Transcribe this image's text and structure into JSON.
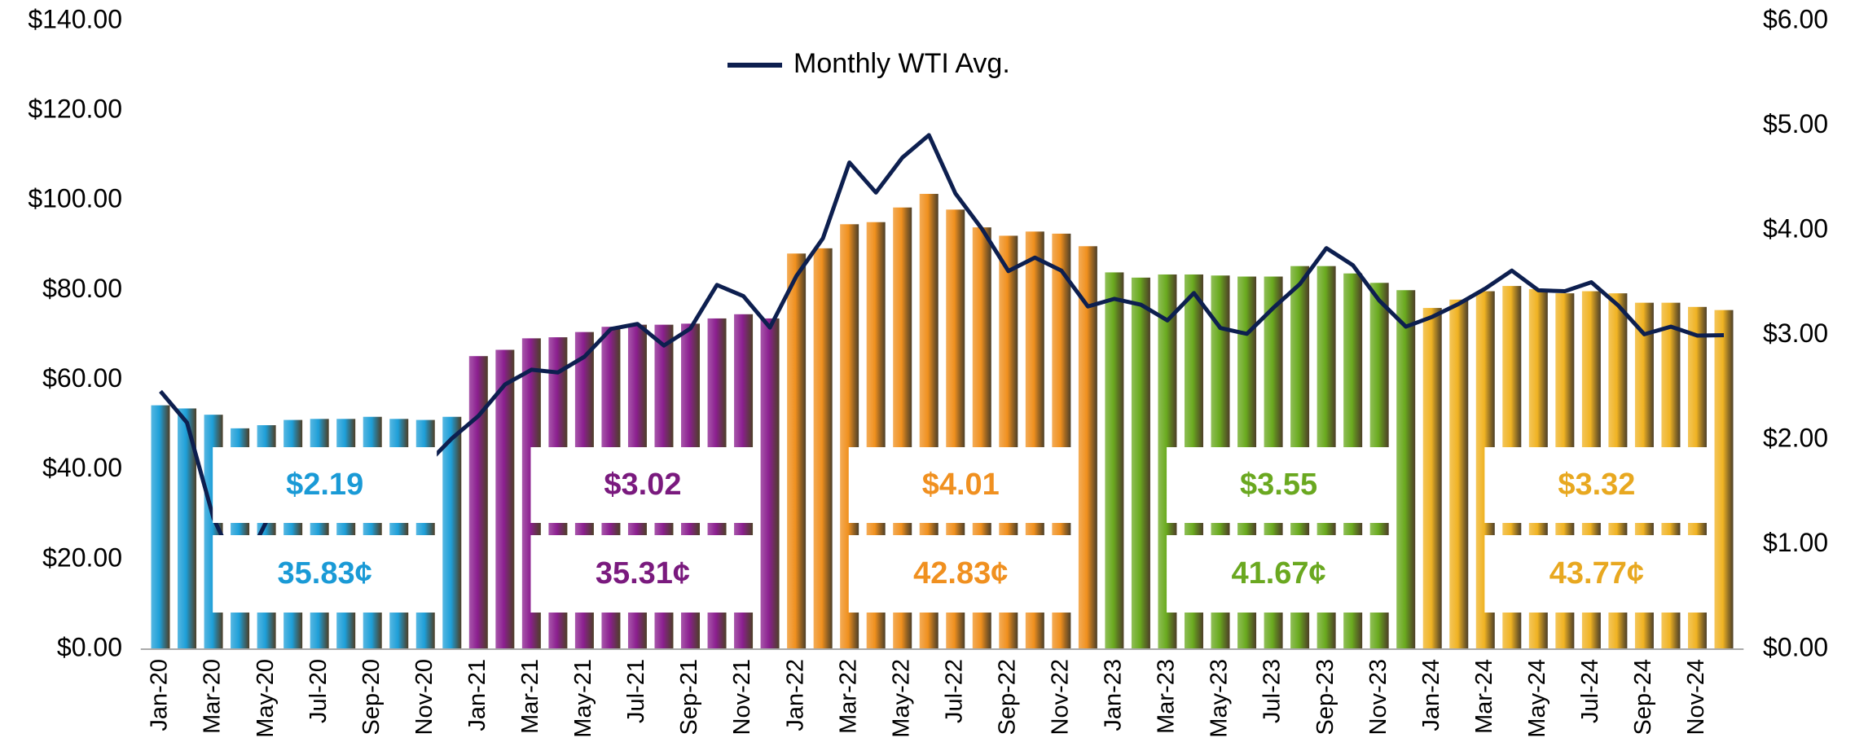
{
  "chart_data": {
    "type": "bar",
    "categories": [
      "Jan-20",
      null,
      "Mar-20",
      null,
      "May-20",
      null,
      "Jul-20",
      null,
      "Sep-20",
      null,
      "Nov-20",
      null,
      "Jan-21",
      null,
      "Mar-21",
      null,
      "May-21",
      null,
      "Jul-21",
      null,
      "Sep-21",
      null,
      "Nov-21",
      null,
      "Jan-22",
      null,
      "Mar-22",
      null,
      "May-22",
      null,
      "Jul-22",
      null,
      "Sep-22",
      null,
      "Nov-22",
      null,
      "Jan-23",
      null,
      "Mar-23",
      null,
      "May-23",
      null,
      "Jul-23",
      null,
      "Sep-23",
      null,
      "Nov-23",
      null,
      "Jan-24",
      null,
      "Mar-24",
      null,
      "May-24",
      null,
      "Jul-24",
      null,
      "Sep-24",
      null,
      "Nov-24",
      null
    ],
    "bars": {
      "axis": "y2",
      "values": [
        2.33,
        2.3,
        2.24,
        2.11,
        2.14,
        2.19,
        2.2,
        2.2,
        2.22,
        2.2,
        2.19,
        2.22,
        2.8,
        2.86,
        2.97,
        2.98,
        3.03,
        3.08,
        3.1,
        3.1,
        3.11,
        3.16,
        3.2,
        3.16,
        3.78,
        3.83,
        4.06,
        4.08,
        4.22,
        4.35,
        4.2,
        4.03,
        3.95,
        3.99,
        3.97,
        3.85,
        3.6,
        3.55,
        3.58,
        3.58,
        3.57,
        3.56,
        3.56,
        3.66,
        3.66,
        3.59,
        3.5,
        3.43,
        3.26,
        3.34,
        3.42,
        3.47,
        3.44,
        3.4,
        3.42,
        3.4,
        3.31,
        3.31,
        3.27,
        3.24
      ],
      "colors": [
        "#1e9fd8",
        "#1e9fd8",
        "#1e9fd8",
        "#1e9fd8",
        "#1e9fd8",
        "#1e9fd8",
        "#1e9fd8",
        "#1e9fd8",
        "#1e9fd8",
        "#1e9fd8",
        "#1e9fd8",
        "#1e9fd8",
        "#8b1f8f",
        "#8b1f8f",
        "#8b1f8f",
        "#8b1f8f",
        "#8b1f8f",
        "#8b1f8f",
        "#8b1f8f",
        "#8b1f8f",
        "#8b1f8f",
        "#8b1f8f",
        "#8b1f8f",
        "#8b1f8f",
        "#f0901e",
        "#f0901e",
        "#f0901e",
        "#f0901e",
        "#f0901e",
        "#f0901e",
        "#f0901e",
        "#f0901e",
        "#f0901e",
        "#f0901e",
        "#f0901e",
        "#f0901e",
        "#6aaa1f",
        "#6aaa1f",
        "#6aaa1f",
        "#6aaa1f",
        "#6aaa1f",
        "#6aaa1f",
        "#6aaa1f",
        "#6aaa1f",
        "#6aaa1f",
        "#6aaa1f",
        "#6aaa1f",
        "#6aaa1f",
        "#f0b323",
        "#f0b323",
        "#f0b323",
        "#f0b323",
        "#f0b323",
        "#f0b323",
        "#f0b323",
        "#f0b323",
        "#f0b323",
        "#f0b323",
        "#f0b323",
        "#f0b323"
      ]
    },
    "series": [
      {
        "name": "Monthly WTI Avg.",
        "color": "#0d1f4f",
        "values": [
          57.5,
          50.5,
          29.2,
          16.6,
          28.5,
          38.3,
          40.7,
          42.3,
          39.6,
          39.4,
          41.0,
          47.0,
          52.0,
          59.0,
          62.3,
          61.7,
          65.2,
          71.4,
          72.5,
          67.7,
          71.5,
          81.2,
          78.7,
          71.7,
          83.2,
          91.6,
          108.5,
          101.8,
          109.6,
          114.6,
          101.6,
          93.7,
          84.3,
          87.3,
          84.4,
          76.4,
          78.1,
          76.8,
          73.3,
          79.4,
          71.6,
          70.3,
          76.1,
          81.4,
          89.4,
          85.6,
          77.7,
          71.9,
          74.1,
          77.0,
          80.4,
          84.4,
          80.0,
          79.8,
          81.8,
          76.7,
          70.2,
          71.9,
          69.9,
          70.0
        ]
      }
    ],
    "ylim": [
      0,
      140
    ],
    "yticks": [
      {
        "value": 0,
        "label": "$0.00"
      },
      {
        "value": 20,
        "label": "$20.00"
      },
      {
        "value": 40,
        "label": "$40.00"
      },
      {
        "value": 60,
        "label": "$60.00"
      },
      {
        "value": 80,
        "label": "$80.00"
      },
      {
        "value": 100,
        "label": "$100.00"
      },
      {
        "value": 120,
        "label": "$120.00"
      },
      {
        "value": 140,
        "label": "$140.00"
      }
    ],
    "y2lim": [
      0,
      6
    ],
    "y2ticks": [
      {
        "value": 0,
        "label": "$0.00"
      },
      {
        "value": 1,
        "label": "$1.00"
      },
      {
        "value": 2,
        "label": "$2.00"
      },
      {
        "value": 3,
        "label": "$3.00"
      },
      {
        "value": 4,
        "label": "$4.00"
      },
      {
        "value": 5,
        "label": "$5.00"
      },
      {
        "value": 6,
        "label": "$6.00"
      }
    ],
    "legend": "top",
    "annotations": [
      {
        "color": "#1a9ad6",
        "texts": [
          "$2.19",
          "35.83¢"
        ]
      },
      {
        "color": "#7a1a7e",
        "texts": [
          "$3.02",
          "35.31¢"
        ]
      },
      {
        "color": "#f09020",
        "texts": [
          "$4.01",
          "42.83¢"
        ]
      },
      {
        "color": "#6aa820",
        "texts": [
          "$3.55",
          "41.67¢"
        ]
      },
      {
        "color": "#e8a820",
        "texts": [
          "$3.32",
          "43.77¢"
        ]
      }
    ]
  }
}
